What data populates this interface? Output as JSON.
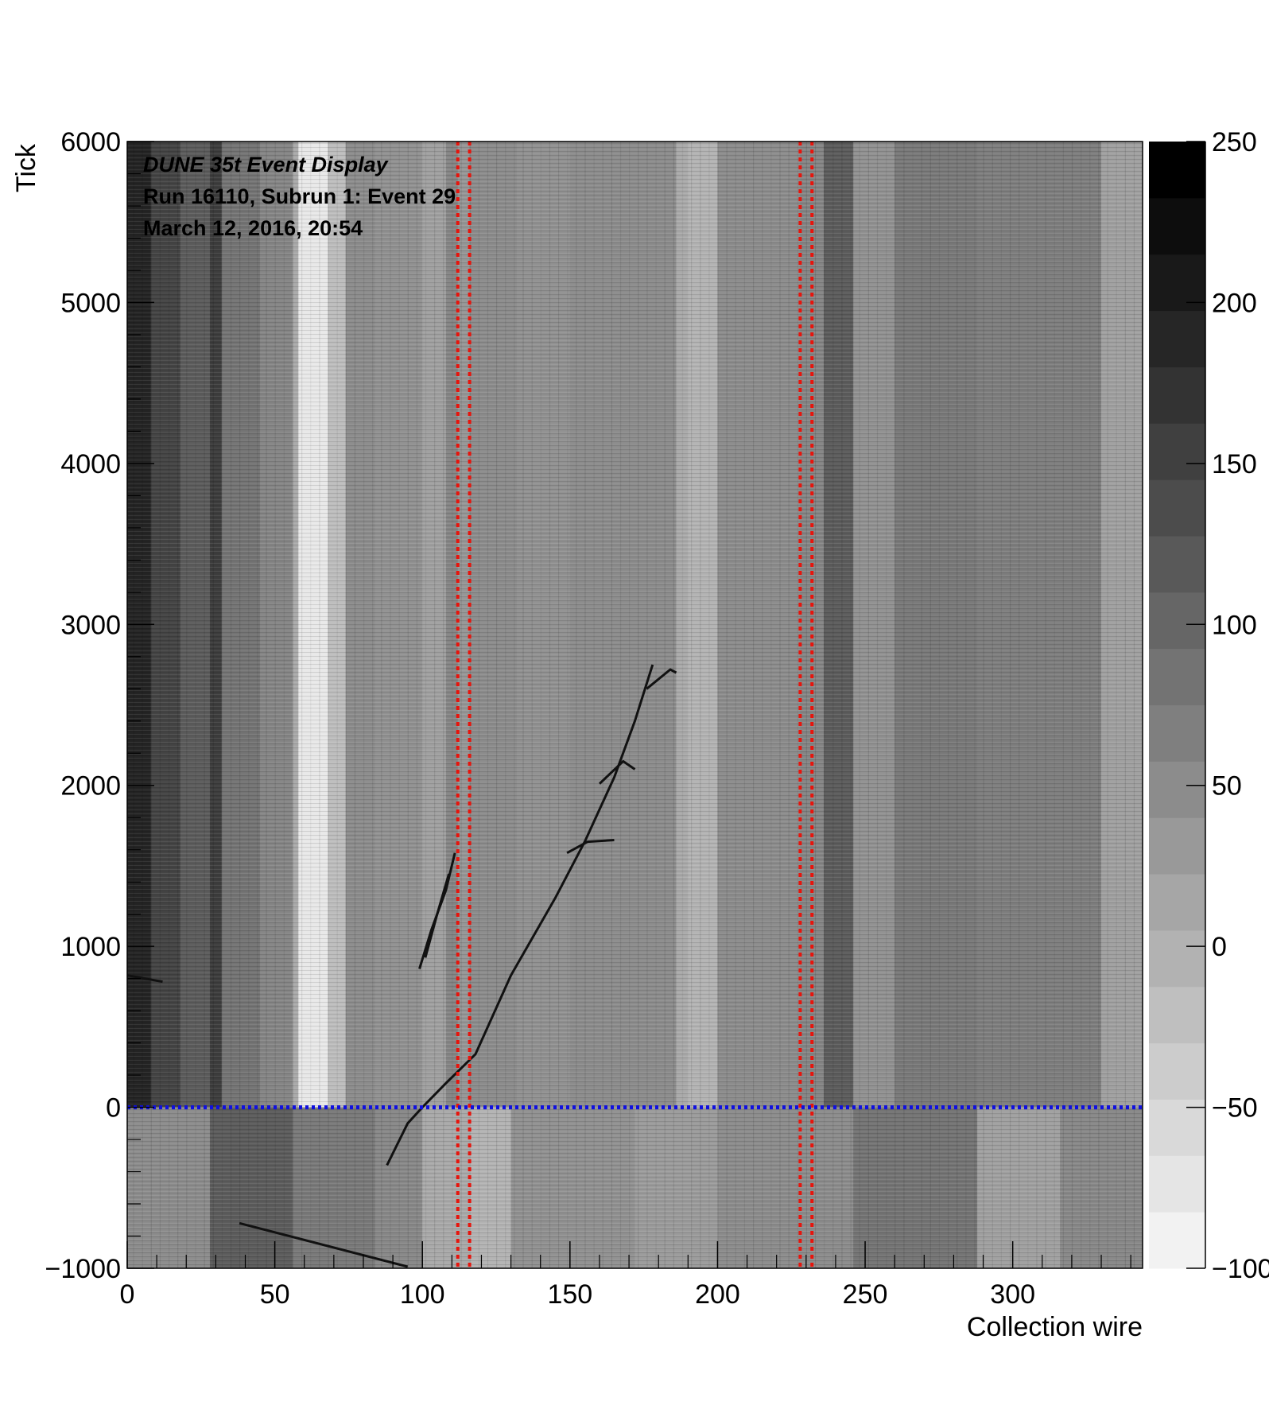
{
  "chart_data": {
    "type": "heatmap",
    "title": "DUNE 35t Event Display",
    "info_lines": [
      "Run 16110, Subrun 1: Event 29",
      "March 12, 2016, 20:54"
    ],
    "xlabel": "Collection wire",
    "ylabel": "Tick",
    "xlim": [
      0,
      344
    ],
    "ylim": [
      -1000,
      6000
    ],
    "x_ticks": [
      0,
      50,
      100,
      150,
      200,
      250,
      300
    ],
    "y_ticks": [
      -1000,
      0,
      1000,
      2000,
      3000,
      4000,
      5000,
      6000
    ],
    "colorbar": {
      "range": [
        -100,
        250
      ],
      "ticks": [
        -100,
        -50,
        0,
        50,
        100,
        150,
        200,
        250
      ],
      "n_levels": 20,
      "color_low": "#f2f2f2",
      "color_high": "#000000"
    },
    "bands": [
      {
        "x0": 0,
        "x1": 8,
        "level": 0.85
      },
      {
        "x0": 8,
        "x1": 18,
        "level": 0.72
      },
      {
        "x0": 18,
        "x1": 28,
        "level": 0.62
      },
      {
        "x0": 28,
        "x1": 32,
        "level": 0.75
      },
      {
        "x0": 32,
        "x1": 45,
        "level": 0.52
      },
      {
        "x0": 45,
        "x1": 56,
        "level": 0.45
      },
      {
        "x0": 56,
        "x1": 58,
        "level": 0.3
      },
      {
        "x0": 58,
        "x1": 68,
        "level": 0.04
      },
      {
        "x0": 68,
        "x1": 74,
        "level": 0.22
      },
      {
        "x0": 74,
        "x1": 84,
        "level": 0.42
      },
      {
        "x0": 84,
        "x1": 100,
        "level": 0.4
      },
      {
        "x0": 100,
        "x1": 108,
        "level": 0.34
      },
      {
        "x0": 108,
        "x1": 112,
        "level": 0.45
      },
      {
        "x0": 112,
        "x1": 116,
        "level": 0.38
      },
      {
        "x0": 116,
        "x1": 132,
        "level": 0.42
      },
      {
        "x0": 132,
        "x1": 150,
        "level": 0.4
      },
      {
        "x0": 150,
        "x1": 186,
        "level": 0.42
      },
      {
        "x0": 186,
        "x1": 190,
        "level": 0.3
      },
      {
        "x0": 190,
        "x1": 200,
        "level": 0.26
      },
      {
        "x0": 200,
        "x1": 228,
        "level": 0.42
      },
      {
        "x0": 228,
        "x1": 236,
        "level": 0.45
      },
      {
        "x0": 236,
        "x1": 246,
        "level": 0.62
      },
      {
        "x0": 246,
        "x1": 260,
        "level": 0.4
      },
      {
        "x0": 260,
        "x1": 288,
        "level": 0.5
      },
      {
        "x0": 288,
        "x1": 330,
        "level": 0.48
      },
      {
        "x0": 330,
        "x1": 344,
        "level": 0.34
      }
    ],
    "lower_bands": [
      {
        "x0": 0,
        "x1": 28,
        "level": 0.42
      },
      {
        "x0": 28,
        "x1": 56,
        "level": 0.62
      },
      {
        "x0": 56,
        "x1": 84,
        "level": 0.5
      },
      {
        "x0": 84,
        "x1": 100,
        "level": 0.44
      },
      {
        "x0": 100,
        "x1": 116,
        "level": 0.3
      },
      {
        "x0": 116,
        "x1": 130,
        "level": 0.26
      },
      {
        "x0": 130,
        "x1": 172,
        "level": 0.4
      },
      {
        "x0": 172,
        "x1": 200,
        "level": 0.36
      },
      {
        "x0": 200,
        "x1": 246,
        "level": 0.42
      },
      {
        "x0": 246,
        "x1": 288,
        "level": 0.52
      },
      {
        "x0": 288,
        "x1": 316,
        "level": 0.34
      },
      {
        "x0": 316,
        "x1": 344,
        "level": 0.44
      }
    ],
    "tracks": [
      {
        "name": "main-track",
        "points": [
          [
            88,
            -360
          ],
          [
            95,
            -100
          ],
          [
            100,
            0
          ],
          [
            108,
            150
          ],
          [
            118,
            330
          ],
          [
            130,
            820
          ],
          [
            145,
            1300
          ],
          [
            155,
            1650
          ],
          [
            165,
            2050
          ],
          [
            172,
            2400
          ],
          [
            178,
            2750
          ]
        ]
      },
      {
        "name": "branch-track-a",
        "points": [
          [
            99,
            860
          ],
          [
            103,
            1100
          ],
          [
            108,
            1350
          ],
          [
            111,
            1580
          ]
        ]
      },
      {
        "name": "branch-track-b",
        "points": [
          [
            101,
            930
          ],
          [
            105,
            1200
          ],
          [
            109,
            1450
          ]
        ]
      },
      {
        "name": "shower-fragment-a",
        "points": [
          [
            149,
            1580
          ],
          [
            156,
            1650
          ],
          [
            165,
            1660
          ]
        ]
      },
      {
        "name": "shower-fragment-b",
        "points": [
          [
            160,
            2010
          ],
          [
            168,
            2150
          ],
          [
            172,
            2100
          ]
        ]
      },
      {
        "name": "shower-fragment-c",
        "points": [
          [
            176,
            2600
          ],
          [
            184,
            2720
          ],
          [
            186,
            2700
          ]
        ]
      },
      {
        "name": "lower-track",
        "points": [
          [
            38,
            -720
          ],
          [
            95,
            -990
          ]
        ]
      },
      {
        "name": "lower-left-track",
        "points": [
          [
            0,
            820
          ],
          [
            12,
            780
          ]
        ]
      }
    ],
    "red_dotted_lines_x": [
      112,
      116,
      228,
      232
    ],
    "blue_dotted_line_y": 0
  }
}
